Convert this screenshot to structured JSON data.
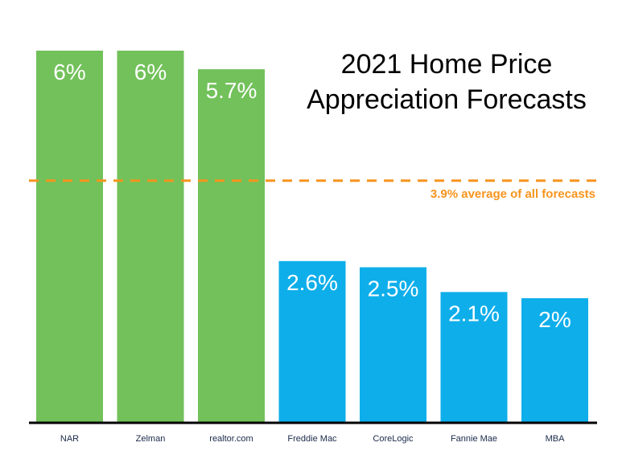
{
  "chart_data": {
    "type": "bar",
    "title_line1": "2021 Home Price",
    "title_line2": "Appreciation Forecasts",
    "categories": [
      "NAR",
      "Zelman",
      "realtor.com",
      "Freddie Mac",
      "CoreLogic",
      "Fannie Mae",
      "MBA"
    ],
    "values": [
      6,
      6,
      5.7,
      2.6,
      2.5,
      2.1,
      2
    ],
    "data_labels": [
      "6%",
      "6%",
      "5.7%",
      "2.6%",
      "2.5%",
      "2.1%",
      "2%"
    ],
    "bar_colors": [
      "#72c15a",
      "#72c15a",
      "#72c15a",
      "#0eaeea",
      "#0eaeea",
      "#0eaeea",
      "#0eaeea"
    ],
    "reference_line": {
      "value": 3.9,
      "label": "3.9% average of all forecasts",
      "color": "#f7941d",
      "style": "dashed"
    },
    "ylim": [
      0,
      6
    ],
    "grid": false,
    "xlabel": "",
    "ylabel": ""
  }
}
